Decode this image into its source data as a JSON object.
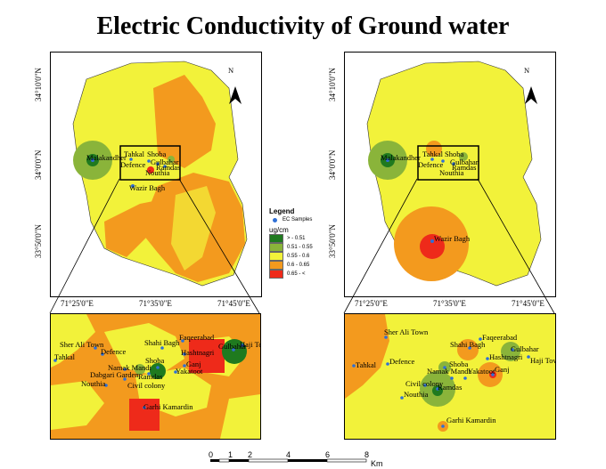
{
  "title": "Electric Conductivity of Ground water",
  "left_map": {
    "y_ticks": [
      "34°10'0\"N",
      "34°0'0\"N",
      "33°50'0\"N"
    ],
    "x_ticks": [
      "71°25'0\"E",
      "71°35'0\"E",
      "71°45'0\"E"
    ],
    "north": "N",
    "labels": [
      "Malakandher",
      "Tahkal",
      "Shoba",
      "Defence",
      "Gulbahar",
      "Ramdas",
      "Nouthia",
      "Wazir Bagh"
    ]
  },
  "right_map": {
    "y_ticks": [
      "34°10'0\"N",
      "34°0'0\"N",
      "33°50'0\"N"
    ],
    "x_ticks": [
      "71°25'0\"E",
      "71°35'0\"E",
      "71°45'0\"E"
    ],
    "north": "N",
    "labels": [
      "Malakandher",
      "Tahkal",
      "Shoba",
      "Defence",
      "Gulbahar",
      "Ramdas",
      "Nouthia",
      "Wazir Bagh"
    ]
  },
  "legend": {
    "title": "Legend",
    "samples": "EC Samples",
    "unit": "ug/cm",
    "classes": [
      {
        "label": "> - 0.51",
        "color": "#1f7a1f"
      },
      {
        "label": "0.51 - 0.55",
        "color": "#8ab43a"
      },
      {
        "label": "0.55 - 0.6",
        "color": "#f2f23a"
      },
      {
        "label": "0.6 - 0.65",
        "color": "#f39a1e"
      },
      {
        "label": "0.65 - <",
        "color": "#ee2a1a"
      }
    ]
  },
  "inset_left": {
    "labels": [
      "Sher Ali Town",
      "Defence",
      "Tahkal",
      "Namak Mandi",
      "Dabgari Garden",
      "Nouthia",
      "Civil colony",
      "Shahi Bagh",
      "Faqeerabad",
      "Gulbahar",
      "Hashtnagri",
      "Haji Town",
      "Shoba",
      "Ganj",
      "Ramdas",
      "Yakatoot",
      "Garhi Kamardin"
    ]
  },
  "inset_right": {
    "labels": [
      "Sher Ali Town",
      "Tahkal",
      "Defence",
      "Shahi Bagh",
      "Faqeerabad",
      "Gulbahar",
      "Hashtnagri",
      "Haji Town",
      "Shoba",
      "Namak Mandi",
      "Yakatoot",
      "Ganj",
      "Civil colony",
      "Ramdas",
      "Nouthia",
      "Garhi Kamardin"
    ]
  },
  "scale": {
    "ticks": [
      "0",
      "1",
      "2",
      "4",
      "6",
      "8"
    ],
    "unit": "Km"
  }
}
